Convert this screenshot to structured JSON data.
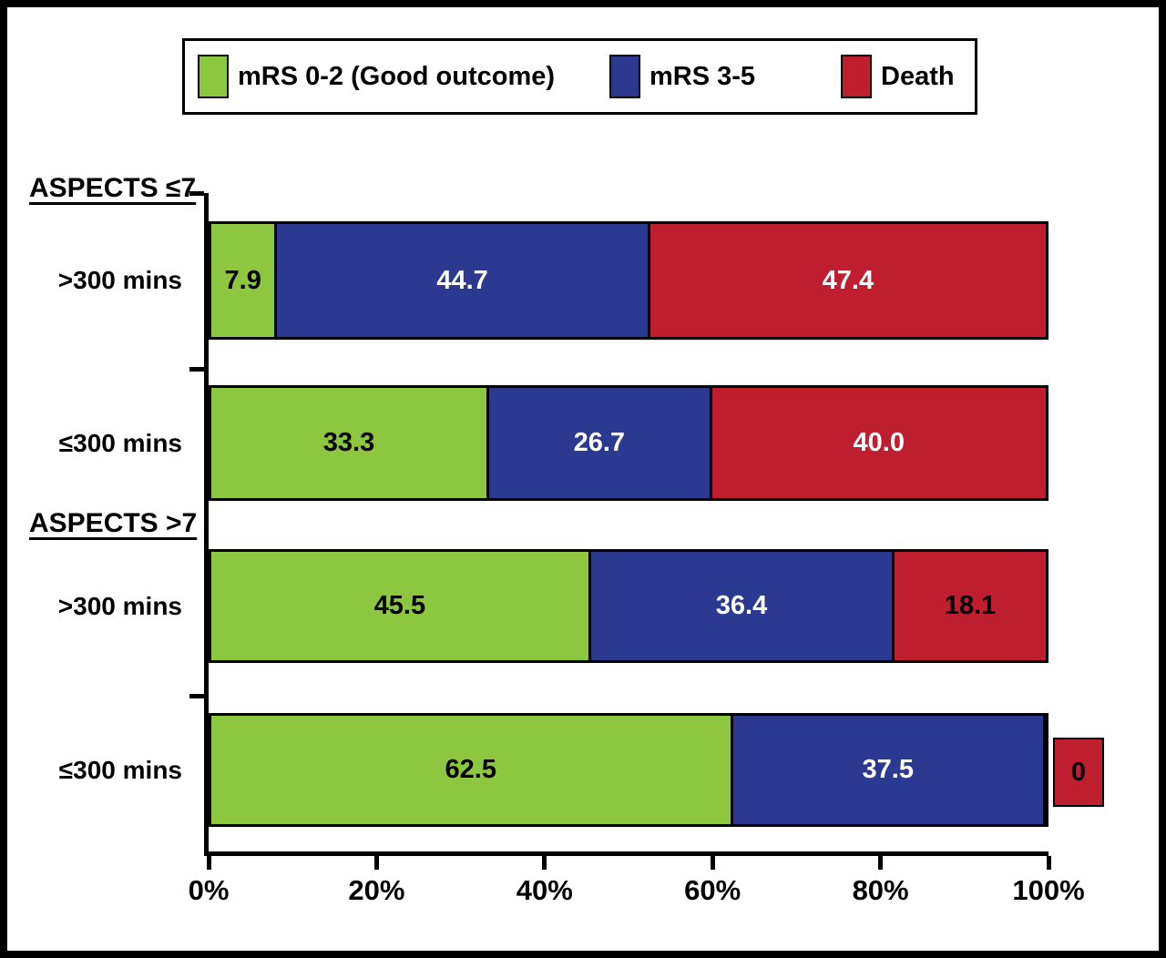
{
  "figure": {
    "background": "#ffffff",
    "border_color": "#000000"
  },
  "legend": {
    "items": [
      {
        "label": "mRS 0-2 (Good outcome)",
        "color": "#8DC63F"
      },
      {
        "label": "mRS 3-5",
        "color": "#2B3990"
      },
      {
        "label": "Death",
        "color": "#BE1E2D"
      }
    ]
  },
  "chart_data": {
    "type": "bar",
    "orientation": "horizontal",
    "stacked": true,
    "unit": "%",
    "legend_position": "top",
    "series_names": [
      "mRS 0-2 (Good outcome)",
      "mRS 3-5",
      "Death"
    ],
    "series_colors": [
      "#8DC63F",
      "#2B3990",
      "#BE1E2D"
    ],
    "x_axis": {
      "range": [
        0,
        100
      ],
      "tick_labels": [
        "0%",
        "20%",
        "40%",
        "60%",
        "80%",
        "100%"
      ]
    },
    "groups": [
      {
        "header": "ASPECTS ≤7",
        "rows": [
          {
            "label": ">300 mins",
            "values": [
              7.9,
              44.7,
              47.4
            ],
            "value_labels": [
              "7.9",
              "44.7",
              "47.4"
            ],
            "label_colors": [
              "#000000",
              "#ffffff",
              "#ffffff"
            ]
          },
          {
            "label": "≤300 mins",
            "values": [
              33.3,
              26.7,
              40.0
            ],
            "value_labels": [
              "33.3",
              "26.7",
              "40.0"
            ],
            "label_colors": [
              "#000000",
              "#ffffff",
              "#ffffff"
            ]
          }
        ]
      },
      {
        "header": "ASPECTS >7",
        "rows": [
          {
            "label": ">300 mins",
            "values": [
              45.5,
              36.4,
              18.1
            ],
            "value_labels": [
              "45.5",
              "36.4",
              "18.1"
            ],
            "label_colors": [
              "#000000",
              "#ffffff",
              "#000000"
            ]
          },
          {
            "label": "≤300 mins",
            "values": [
              62.5,
              37.5,
              0
            ],
            "value_labels": [
              "62.5",
              "37.5",
              "0"
            ],
            "label_colors": [
              "#000000",
              "#ffffff",
              "#000000"
            ]
          }
        ]
      }
    ]
  }
}
